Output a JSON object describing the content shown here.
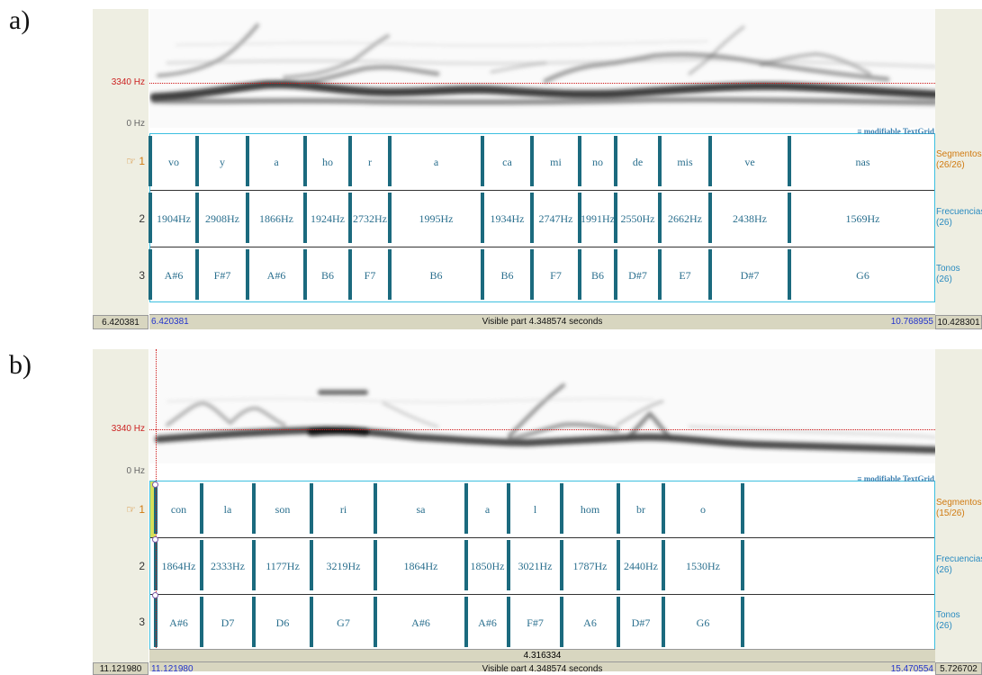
{
  "panel_a": {
    "label": "a)",
    "hz_top": "3340 Hz",
    "hz_bottom": "0 Hz",
    "modifiable": "≡ modifiable TextGrid",
    "tiers": [
      {
        "num": "☞ 1",
        "name": "Segmentos",
        "count": "(26/26)"
      },
      {
        "num": "2",
        "name": "Frecuencias",
        "count": "(26)"
      },
      {
        "num": "3",
        "name": "Tonos",
        "count": "(26)"
      }
    ],
    "segments": [
      "vo",
      "y",
      "a",
      "ho",
      "r",
      "a",
      "ca",
      "mi",
      "no",
      "de",
      "mis",
      "ve",
      "nas"
    ],
    "frequencies": [
      "1904Hz",
      "2908Hz",
      "1866Hz",
      "1924Hz",
      "2732Hz",
      "1995Hz",
      "1934Hz",
      "2747Hz",
      "1991Hz",
      "2550Hz",
      "2662Hz",
      "2438Hz",
      "1569Hz"
    ],
    "tones": [
      "A#6",
      "F#7",
      "A#6",
      "B6",
      "F7",
      "B6",
      "B6",
      "F7",
      "B6",
      "D#7",
      "E7",
      "D#7",
      "G6"
    ],
    "left_total": "6.420381",
    "left_visible": "6.420381",
    "visible_part": "Visible part 4.348574 seconds",
    "right_visible": "10.768955",
    "right_total": "10.428301"
  },
  "panel_b": {
    "label": "b)",
    "hz_top": "3340 Hz",
    "hz_bottom": "0 Hz",
    "modifiable": "≡ modifiable TextGrid",
    "tiers": [
      {
        "num": "☞ 1",
        "name": "Segmentos",
        "count": "(15/26)"
      },
      {
        "num": "2",
        "name": "Frecuencias",
        "count": "(26)"
      },
      {
        "num": "3",
        "name": "Tonos",
        "count": "(26)"
      }
    ],
    "segments": [
      "con",
      "la",
      "son",
      "ri",
      "sa",
      "a",
      "l",
      "hom",
      "br",
      "o"
    ],
    "frequencies": [
      "1864Hz",
      "2333Hz",
      "1177Hz",
      "3219Hz",
      "1864Hz",
      "1850Hz",
      "3021Hz",
      "1787Hz",
      "2440Hz",
      "1530Hz"
    ],
    "tones": [
      "A#6",
      "D7",
      "D6",
      "G7",
      "A#6",
      "A#6",
      "F#7",
      "A6",
      "D#7",
      "G6"
    ],
    "selection_duration": "4.316334",
    "left_total": "11.121980",
    "left_visible": "11.121980",
    "visible_part": "Visible part 4.348574 seconds",
    "right_visible": "15.470554",
    "right_total": "5.726702"
  },
  "colors": {
    "boundary": "#1b6a7e",
    "tier_border": "#3cc0e0",
    "active_tier": "#d07a10",
    "cursor": "#d01818",
    "text": "#2a6f8e"
  }
}
